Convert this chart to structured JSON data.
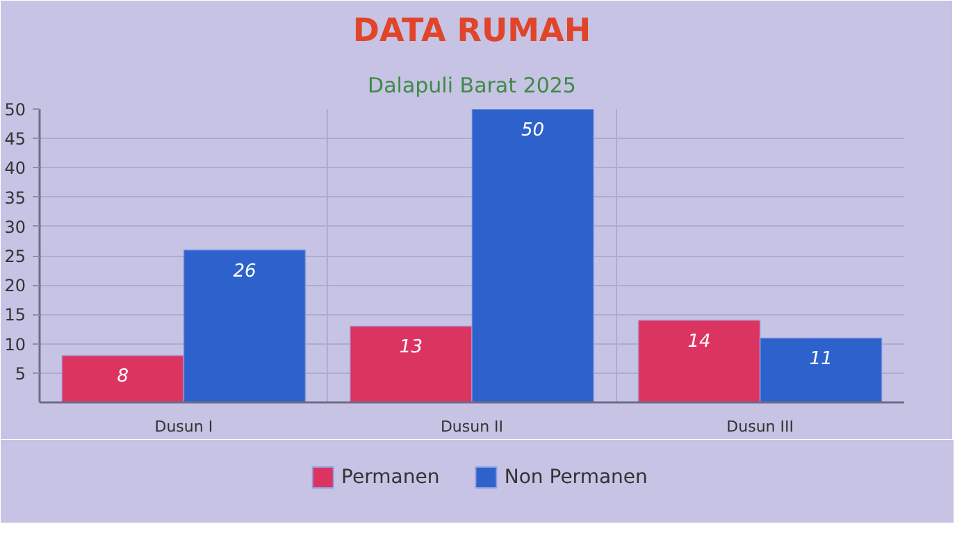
{
  "chart_data": {
    "type": "bar",
    "title": "DATA RUMAH",
    "subtitle": "Dalapuli Barat 2025",
    "categories": [
      "Dusun I",
      "Dusun II",
      "Dusun III"
    ],
    "series": [
      {
        "name": "Permanen",
        "color": "#dc3461",
        "values": [
          8,
          13,
          14
        ]
      },
      {
        "name": "Non Permanen",
        "color": "#2d62cc",
        "values": [
          26,
          50,
          11
        ]
      }
    ],
    "ylim": [
      0,
      50
    ],
    "yticks": [
      5,
      10,
      15,
      20,
      25,
      30,
      35,
      40,
      45,
      50
    ],
    "grid": true,
    "legend": "bottom",
    "data_labels": true
  }
}
